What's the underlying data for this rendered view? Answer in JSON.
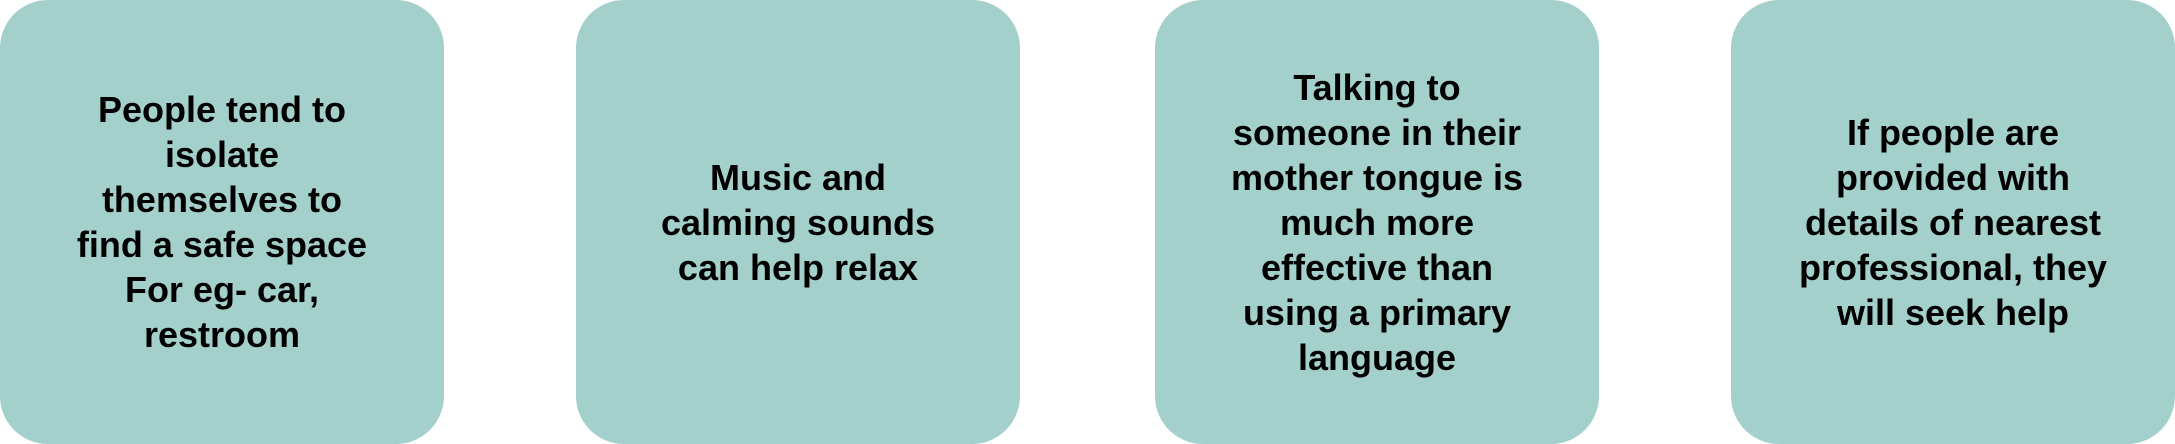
{
  "cards": [
    {
      "text": "People tend to\nisolate\nthemselves to\nfind a safe space\nFor eg- car,\nrestroom"
    },
    {
      "text": "Music and\ncalming sounds\ncan help relax"
    },
    {
      "text": "Talking to\nsomeone in their\nmother tongue is\nmuch more\neffective than\nusing a primary\nlanguage"
    },
    {
      "text": "If people are\nprovided with\ndetails of nearest\nprofessional, they\nwill seek help"
    }
  ],
  "colors": {
    "card_background": "#a3d0ca",
    "text": "#000000",
    "page_background": "#ffffff"
  }
}
